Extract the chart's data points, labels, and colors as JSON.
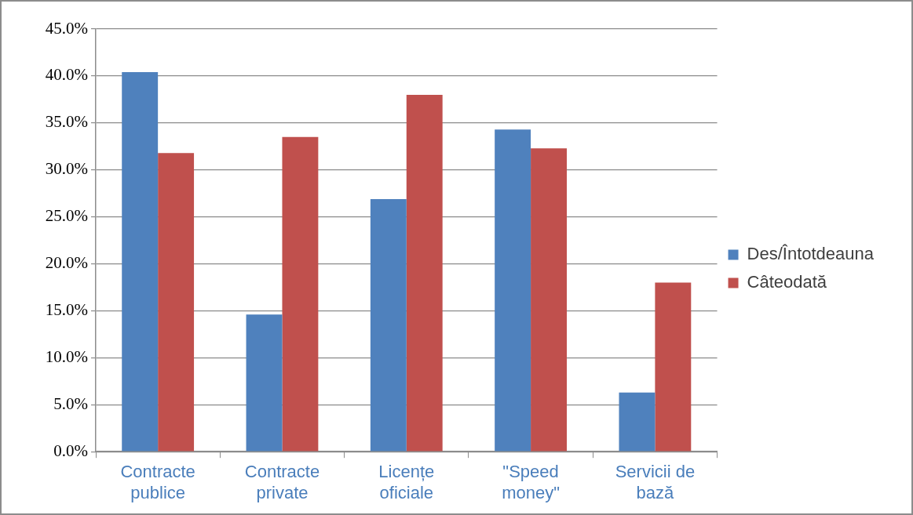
{
  "chart_data": {
    "type": "bar",
    "categories": [
      "Contracte publice",
      "Contracte private",
      "Licențe oficiale",
      "\"Speed money\"",
      "Servicii de bază"
    ],
    "series": [
      {
        "name": "Des/Întotdeauna",
        "color": "#4f81bd",
        "values": [
          40.4,
          14.6,
          26.9,
          34.3,
          6.3
        ]
      },
      {
        "name": "Câteodată",
        "color": "#c0504d",
        "values": [
          31.8,
          33.5,
          38.0,
          32.3,
          18.0
        ]
      }
    ],
    "ylim": [
      0,
      45
    ],
    "yticks": [
      {
        "value": 0,
        "label": "0.0%"
      },
      {
        "value": 5,
        "label": "5.0%"
      },
      {
        "value": 10,
        "label": "10.0%"
      },
      {
        "value": 15,
        "label": "15.0%"
      },
      {
        "value": 20,
        "label": "20.0%"
      },
      {
        "value": 25,
        "label": "25.0%"
      },
      {
        "value": 30,
        "label": "30.0%"
      },
      {
        "value": 35,
        "label": "35.0%"
      },
      {
        "value": 40,
        "label": "40.0%"
      },
      {
        "value": 45,
        "label": "45.0%"
      }
    ],
    "grid": "y",
    "legend": "right"
  }
}
